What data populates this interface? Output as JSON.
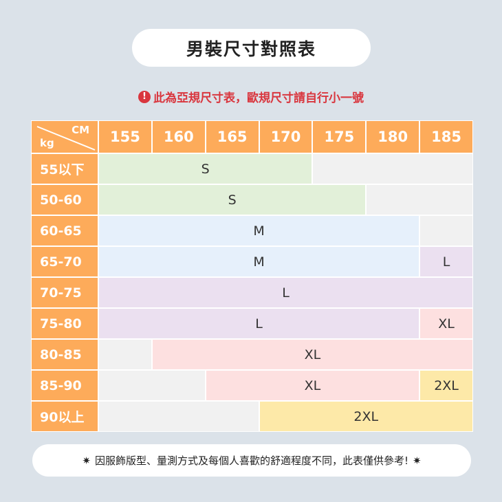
{
  "title": "男裝尺寸對照表",
  "notice": {
    "icon": "exclamation-circle-icon",
    "icon_glyph": "!",
    "text": "此為亞規尺寸表，歐規尺寸請自行小一號"
  },
  "table": {
    "corner": {
      "top": "CM",
      "bottom": "kg"
    },
    "heights": [
      "155",
      "160",
      "165",
      "170",
      "175",
      "180",
      "185"
    ],
    "rows": [
      {
        "weight": "55以下",
        "cells": [
          {
            "size": "S",
            "span": 4,
            "color": "#e2f0d9"
          },
          {
            "size": "",
            "span": 3,
            "color": "#f1f1f1"
          }
        ]
      },
      {
        "weight": "50-60",
        "cells": [
          {
            "size": "S",
            "span": 5,
            "color": "#e2f0d9"
          },
          {
            "size": "",
            "span": 2,
            "color": "#f1f1f1"
          }
        ]
      },
      {
        "weight": "60-65",
        "cells": [
          {
            "size": "M",
            "span": 6,
            "color": "#e6f0fb"
          },
          {
            "size": "",
            "span": 1,
            "color": "#f1f1f1"
          }
        ]
      },
      {
        "weight": "65-70",
        "cells": [
          {
            "size": "M",
            "span": 6,
            "color": "#e6f0fb"
          },
          {
            "size": "L",
            "span": 1,
            "color": "#ebe0f0"
          }
        ]
      },
      {
        "weight": "70-75",
        "cells": [
          {
            "size": "L",
            "span": 7,
            "color": "#ebe0f0"
          }
        ]
      },
      {
        "weight": "75-80",
        "cells": [
          {
            "size": "L",
            "span": 6,
            "color": "#ebe0f0"
          },
          {
            "size": "XL",
            "span": 1,
            "color": "#fde0e0"
          }
        ]
      },
      {
        "weight": "80-85",
        "cells": [
          {
            "size": "",
            "span": 1,
            "color": "#f1f1f1"
          },
          {
            "size": "XL",
            "span": 6,
            "color": "#fde0e0"
          }
        ]
      },
      {
        "weight": "85-90",
        "cells": [
          {
            "size": "",
            "span": 2,
            "color": "#f1f1f1"
          },
          {
            "size": "XL",
            "span": 4,
            "color": "#fde0e0"
          },
          {
            "size": "2XL",
            "span": 1,
            "color": "#fde9a8"
          }
        ]
      },
      {
        "weight": "90以上",
        "cells": [
          {
            "size": "",
            "span": 3,
            "color": "#f1f1f1"
          },
          {
            "size": "2XL",
            "span": 4,
            "color": "#fde9a8"
          }
        ]
      }
    ]
  },
  "footer": {
    "star": "✷",
    "text": "因服飾版型、量測方式及每個人喜歡的舒適程度不同，此表僅供參考!"
  },
  "colors": {
    "background": "#dbe2e9",
    "header": "#fdab5a",
    "alert": "#d9363e"
  }
}
